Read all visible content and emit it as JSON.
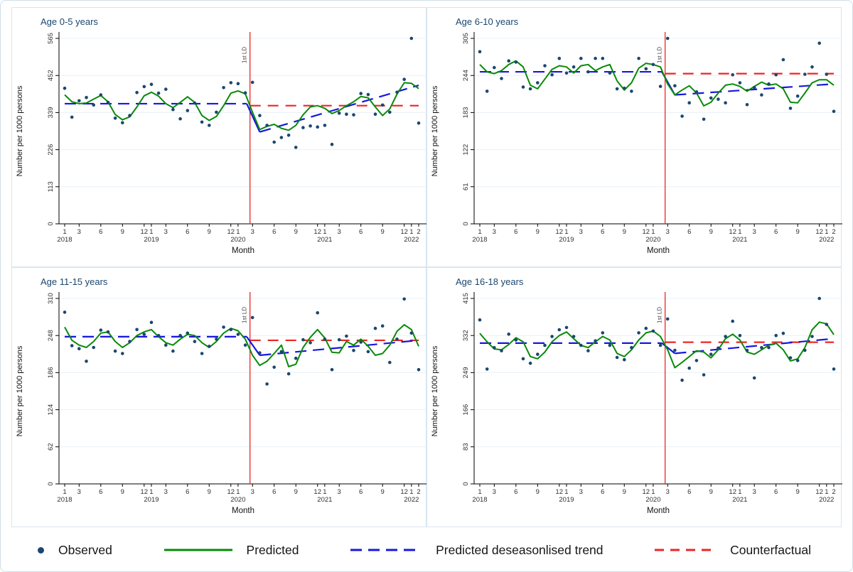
{
  "figure": {
    "kind": "four-panel interrupted time-series chart"
  },
  "colors": {
    "navy": "#1a476f",
    "green": "#098a09",
    "blue": "#1717e0",
    "red": "#ee2424",
    "grid": "#e7f0f7",
    "panel_border": "#d9e6f0",
    "axis": "#000000",
    "tick_text": "#303030",
    "title_text": "#1a476f",
    "lockdown_text": "#444444"
  },
  "legend": {
    "items": [
      {
        "label": "Observed",
        "marker": "dot",
        "color_key": "navy"
      },
      {
        "label": "Predicted",
        "marker": "solid-line",
        "color_key": "green"
      },
      {
        "label": "Predicted deseasonlised trend",
        "marker": "dashed-line",
        "color_key": "blue"
      },
      {
        "label": "Counterfactual",
        "marker": "dashed-line-short",
        "color_key": "red"
      }
    ]
  },
  "axis": {
    "x_title": "Month",
    "y_title": "Number per 1000 persons",
    "x_ticks": [
      {
        "i": 0,
        "m": "1",
        "yr": "2018"
      },
      {
        "i": 2,
        "m": "3"
      },
      {
        "i": 5,
        "m": "6"
      },
      {
        "i": 8,
        "m": "9"
      },
      {
        "i": 11,
        "m": "12"
      },
      {
        "i": 12,
        "m": "1",
        "yr": "2019"
      },
      {
        "i": 14,
        "m": "3"
      },
      {
        "i": 17,
        "m": "6"
      },
      {
        "i": 20,
        "m": "9"
      },
      {
        "i": 23,
        "m": "12"
      },
      {
        "i": 24,
        "m": "1",
        "yr": "2020"
      },
      {
        "i": 26,
        "m": "3"
      },
      {
        "i": 29,
        "m": "6"
      },
      {
        "i": 32,
        "m": "9"
      },
      {
        "i": 35,
        "m": "12"
      },
      {
        "i": 36,
        "m": "1",
        "yr": "2021"
      },
      {
        "i": 38,
        "m": "3"
      },
      {
        "i": 41,
        "m": "6"
      },
      {
        "i": 44,
        "m": "9"
      },
      {
        "i": 47,
        "m": "12"
      },
      {
        "i": 48,
        "m": "1",
        "yr": "2022"
      },
      {
        "i": 49,
        "m": "2"
      }
    ]
  },
  "lockdown": {
    "label": "1st LD",
    "month_index": 25.65
  },
  "chart_data": [
    {
      "type": "line+scatter",
      "title": "Age 0-5 years",
      "ylim": [
        0,
        565
      ],
      "yticks": [
        0,
        113,
        226,
        339,
        452,
        565
      ],
      "x_months": "Jan 2018 - Feb 2022 (monthly, 50 points)",
      "observed": [
        413,
        325,
        375,
        385,
        362,
        393,
        370,
        322,
        308,
        330,
        400,
        418,
        425,
        398,
        410,
        348,
        320,
        345,
        368,
        310,
        300,
        340,
        415,
        430,
        427,
        399,
        431,
        330,
        300,
        249,
        263,
        270,
        233,
        293,
        298,
        295,
        300,
        242,
        337,
        334,
        332,
        397,
        394,
        334,
        362,
        340,
        401,
        440,
        565,
        307
      ],
      "predicted": [
        393,
        372,
        366,
        368,
        380,
        391,
        372,
        333,
        317,
        326,
        356,
        390,
        401,
        389,
        366,
        354,
        370,
        387,
        370,
        330,
        315,
        327,
        360,
        398,
        405,
        396,
        340,
        287,
        297,
        303,
        291,
        285,
        300,
        332,
        356,
        360,
        352,
        336,
        345,
        360,
        372,
        388,
        384,
        356,
        330,
        350,
        395,
        430,
        428,
        412
      ],
      "trend_pre_level": 366,
      "trend_post_start": 280,
      "trend_post_end": 422,
      "counterfactual_level": 360
    },
    {
      "type": "line+scatter",
      "title": "Age 6-10 years",
      "ylim": [
        0,
        305
      ],
      "yticks": [
        0,
        61,
        122,
        183,
        244,
        305
      ],
      "x_months": "Jan 2018 - Feb 2022 (monthly, 50 points)",
      "observed": [
        283,
        218,
        257,
        239,
        268,
        266,
        225,
        222,
        232,
        260,
        245,
        272,
        248,
        258,
        272,
        250,
        272,
        272,
        248,
        222,
        223,
        218,
        272,
        255,
        262,
        226,
        305,
        227,
        177,
        199,
        217,
        172,
        207,
        205,
        199,
        245,
        232,
        196,
        224,
        212,
        230,
        245,
        270,
        190,
        210,
        246,
        258,
        297,
        246,
        185
      ],
      "predicted": [
        262,
        250,
        247,
        252,
        262,
        268,
        258,
        228,
        222,
        238,
        254,
        260,
        258,
        248,
        260,
        262,
        252,
        258,
        262,
        235,
        220,
        232,
        256,
        264,
        262,
        258,
        230,
        212,
        220,
        227,
        215,
        194,
        200,
        215,
        228,
        230,
        226,
        218,
        226,
        233,
        228,
        230,
        222,
        200,
        199,
        215,
        232,
        237,
        237,
        228
      ],
      "trend_pre_level": 250,
      "trend_post_start": 212,
      "trend_post_end": 230,
      "counterfactual_level": 247
    },
    {
      "type": "line+scatter",
      "title": "Age 11-15 years",
      "ylim": [
        0,
        310
      ],
      "yticks": [
        0,
        62,
        124,
        186,
        248,
        310
      ],
      "x_months": "Jan 2018 - Feb 2022 (monthly, 50 points)",
      "observed": [
        287,
        231,
        226,
        205,
        228,
        257,
        254,
        222,
        218,
        238,
        258,
        250,
        270,
        248,
        232,
        222,
        248,
        252,
        238,
        218,
        230,
        242,
        262,
        258,
        250,
        232,
        278,
        219,
        167,
        195,
        221,
        184,
        210,
        241,
        236,
        286,
        242,
        191,
        241,
        247,
        223,
        237,
        221,
        260,
        264,
        203,
        242,
        309,
        252,
        191
      ],
      "predicted": [
        262,
        240,
        232,
        228,
        238,
        252,
        254,
        238,
        228,
        236,
        248,
        254,
        258,
        246,
        236,
        232,
        242,
        250,
        248,
        236,
        228,
        238,
        252,
        260,
        256,
        242,
        215,
        198,
        205,
        218,
        232,
        196,
        200,
        228,
        245,
        258,
        244,
        220,
        219,
        238,
        232,
        242,
        230,
        215,
        218,
        232,
        255,
        266,
        258,
        230
      ],
      "trend_pre_level": 246,
      "trend_post_start": 215,
      "trend_post_end": 240,
      "counterfactual_level": 240
    },
    {
      "type": "line+scatter",
      "title": "Age 16-18 years",
      "ylim": [
        0,
        415
      ],
      "yticks": [
        0,
        83,
        166,
        249,
        332,
        415
      ],
      "x_months": "Jan 2018 - Feb 2022 (monthly, 50 points)",
      "observed": [
        367,
        257,
        305,
        298,
        335,
        322,
        280,
        270,
        290,
        310,
        330,
        345,
        350,
        330,
        310,
        298,
        320,
        338,
        310,
        283,
        278,
        305,
        338,
        348,
        342,
        310,
        369,
        299,
        232,
        259,
        276,
        244,
        290,
        304,
        330,
        364,
        332,
        299,
        237,
        305,
        305,
        332,
        337,
        282,
        276,
        299,
        330,
        415,
        357,
        257
      ],
      "predicted": [
        337,
        318,
        302,
        300,
        312,
        327,
        318,
        285,
        280,
        295,
        318,
        332,
        340,
        325,
        310,
        305,
        318,
        330,
        322,
        292,
        285,
        300,
        322,
        338,
        342,
        330,
        300,
        260,
        272,
        285,
        298,
        295,
        282,
        300,
        325,
        335,
        322,
        295,
        290,
        300,
        310,
        315,
        300,
        275,
        280,
        305,
        345,
        362,
        358,
        334
      ],
      "trend_pre_level": 315,
      "trend_post_start": 292,
      "trend_post_end": 325,
      "counterfactual_level": 317
    }
  ]
}
